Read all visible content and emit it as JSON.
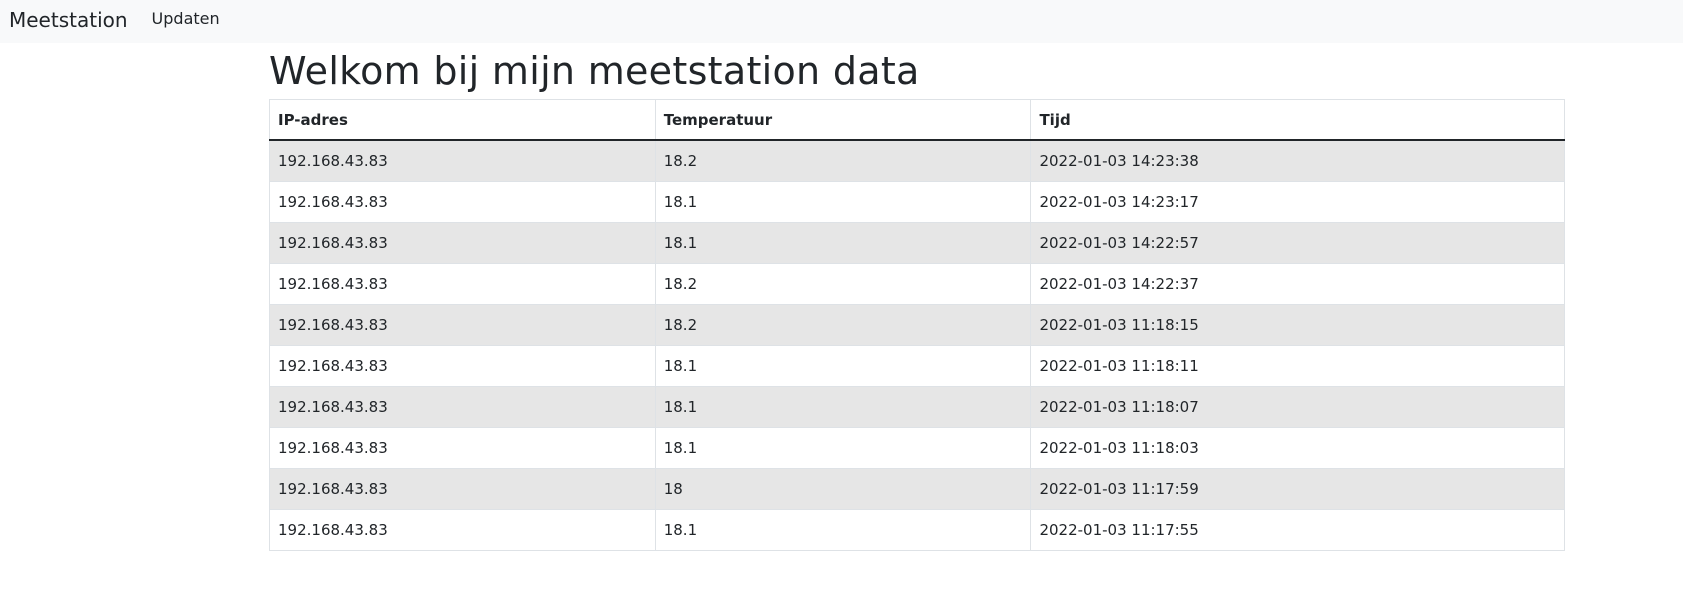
{
  "navbar": {
    "brand": "Meetstation",
    "link_update": "Updaten"
  },
  "page": {
    "title": "Welkom bij mijn meetstation data"
  },
  "table": {
    "headers": [
      "IP-adres",
      "Temperatuur",
      "Tijd"
    ],
    "rows": [
      [
        "192.168.43.83",
        "18.2",
        "2022-01-03 14:23:38"
      ],
      [
        "192.168.43.83",
        "18.1",
        "2022-01-03 14:23:17"
      ],
      [
        "192.168.43.83",
        "18.1",
        "2022-01-03 14:22:57"
      ],
      [
        "192.168.43.83",
        "18.2",
        "2022-01-03 14:22:37"
      ],
      [
        "192.168.43.83",
        "18.2",
        "2022-01-03 11:18:15"
      ],
      [
        "192.168.43.83",
        "18.1",
        "2022-01-03 11:18:11"
      ],
      [
        "192.168.43.83",
        "18.1",
        "2022-01-03 11:18:07"
      ],
      [
        "192.168.43.83",
        "18.1",
        "2022-01-03 11:18:03"
      ],
      [
        "192.168.43.83",
        "18",
        "2022-01-03 11:17:59"
      ],
      [
        "192.168.43.83",
        "18.1",
        "2022-01-03 11:17:55"
      ]
    ]
  },
  "colors": {
    "navbar_bg": "#f8f9fa",
    "stripe": "#e6e6e6",
    "border": "#dee2e6",
    "text": "#212529"
  }
}
